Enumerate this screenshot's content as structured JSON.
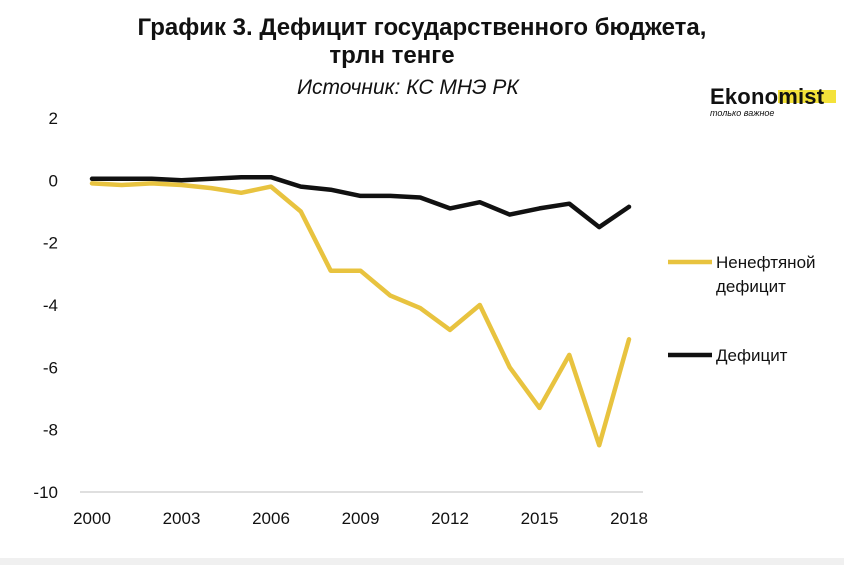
{
  "header": {
    "title_line1": "График 3. Дефицит государственного бюджета,",
    "title_line2": "трлн тенге",
    "source": "Источник: КС МНЭ РК"
  },
  "logo": {
    "name": "Ekonomist",
    "tagline": "только важное",
    "highlight_color": "#f4e23a"
  },
  "chart_data": {
    "type": "line",
    "title": "График 3. Дефицит государственного бюджета, трлн тенге",
    "xlabel": "",
    "ylabel": "",
    "x": [
      2000,
      2001,
      2002,
      2003,
      2004,
      2005,
      2006,
      2007,
      2008,
      2009,
      2010,
      2011,
      2012,
      2013,
      2014,
      2015,
      2016,
      2017,
      2018
    ],
    "x_tick_labels": [
      "2000",
      "2003",
      "2006",
      "2009",
      "2012",
      "2015",
      "2018"
    ],
    "y_tick_labels": [
      "2",
      "0",
      "-2",
      "-4",
      "-6",
      "-8",
      "-10"
    ],
    "ylim": [
      -10,
      2
    ],
    "xlim": [
      2000,
      2018
    ],
    "grid": false,
    "legend_position": "right",
    "series": [
      {
        "name": "Ненефтяной дефицит",
        "color": "#e8c33f",
        "values": [
          -0.1,
          -0.15,
          -0.1,
          -0.15,
          -0.25,
          -0.4,
          -0.2,
          -1.0,
          -2.9,
          -2.9,
          -3.7,
          -4.1,
          -4.8,
          -4.0,
          -6.0,
          -7.3,
          -5.6,
          -8.5,
          -5.1
        ]
      },
      {
        "name": "Дефицит",
        "color": "#111111",
        "values": [
          0.05,
          0.05,
          0.05,
          0.0,
          0.05,
          0.1,
          0.1,
          -0.2,
          -0.3,
          -0.5,
          -0.5,
          -0.55,
          -0.9,
          -0.7,
          -1.1,
          -0.9,
          -0.75,
          -1.5,
          -0.85
        ]
      }
    ]
  }
}
